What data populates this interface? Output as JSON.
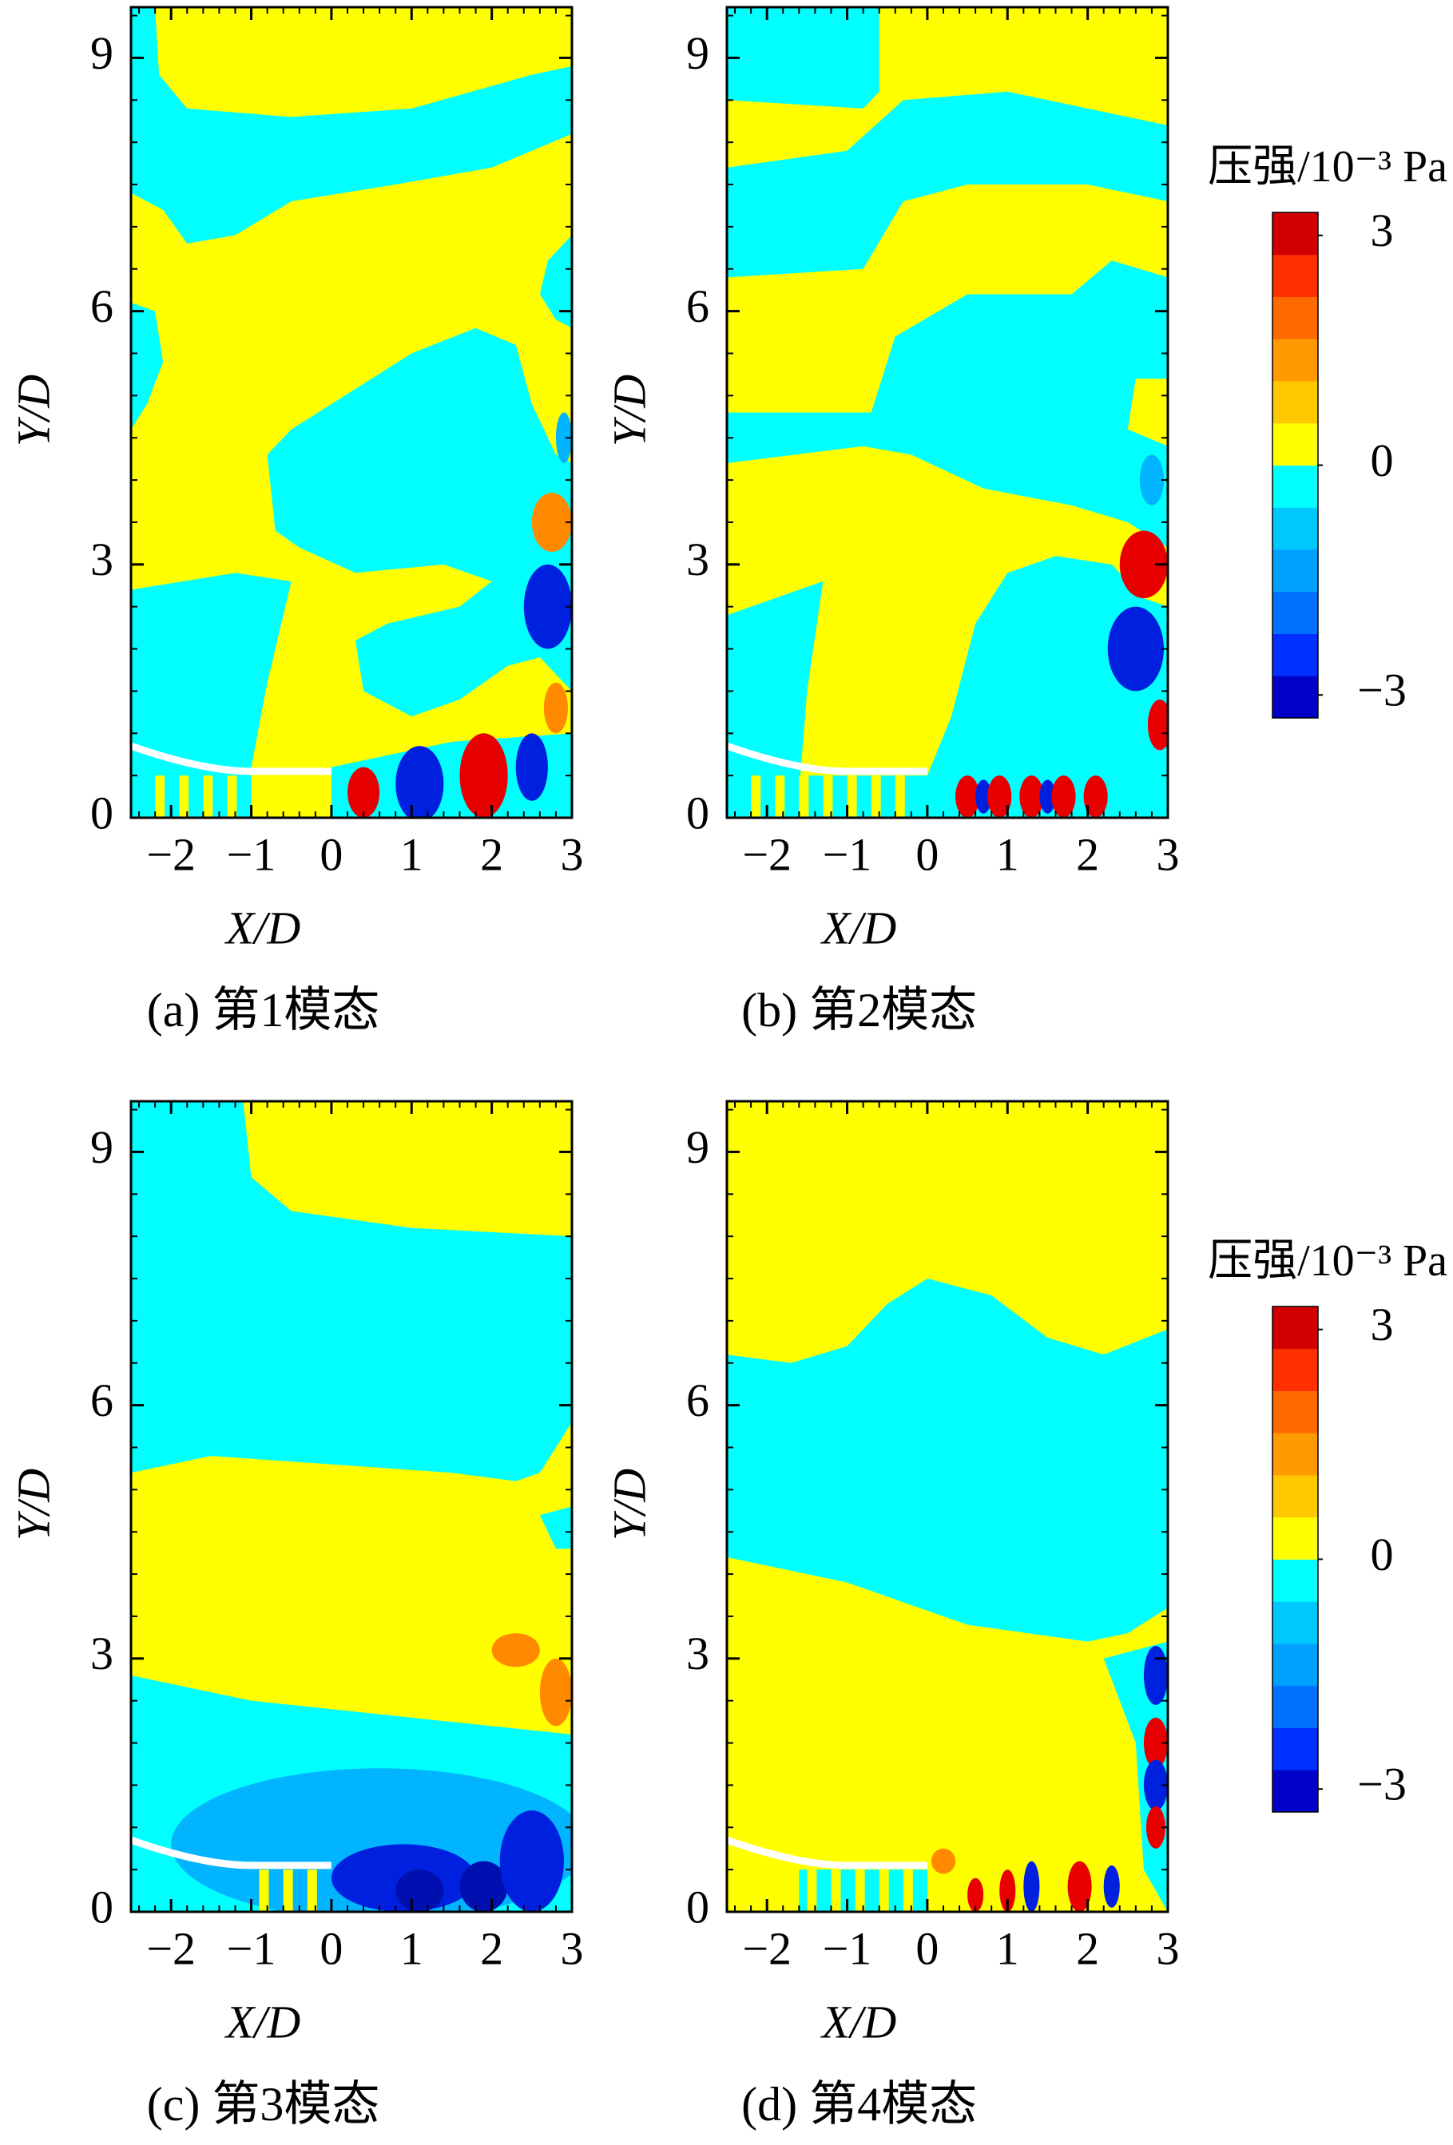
{
  "chart_data": [
    {
      "type": "contour",
      "title": "(a) 第1模态",
      "x_label": "X/D",
      "y_label": "Y/D",
      "xlim": [
        -2.5,
        3
      ],
      "ylim": [
        0,
        9.6
      ],
      "xticks": [
        {
          "value": -2,
          "label": "−2"
        },
        {
          "value": -1,
          "label": "−1"
        },
        0,
        1,
        2,
        3
      ],
      "yticks": [
        0,
        3,
        6,
        9
      ]
    },
    {
      "type": "contour",
      "title": "(b) 第2模态",
      "x_label": "X/D",
      "y_label": "Y/D",
      "xlim": [
        -2.5,
        3
      ],
      "ylim": [
        0,
        9.6
      ],
      "xticks": [
        {
          "value": -2,
          "label": "−2"
        },
        {
          "value": -1,
          "label": "−1"
        },
        0,
        1,
        2,
        3
      ],
      "yticks": [
        0,
        3,
        6,
        9
      ],
      "colorbar": {
        "title": "压强/10⁻³ Pa",
        "lim": [
          -3.3,
          3.3
        ],
        "ticks": [
          {
            "value": -3,
            "label": "−3"
          },
          0,
          3
        ],
        "colors": [
          "#0000c8",
          "#0030ff",
          "#0070ff",
          "#00a0ff",
          "#00c8ff",
          "#00ffff",
          "#ffff00",
          "#ffc800",
          "#ff9a00",
          "#ff6a00",
          "#ff3000",
          "#d00000"
        ]
      }
    },
    {
      "type": "contour",
      "title": "(c) 第3模态",
      "x_label": "X/D",
      "y_label": "Y/D",
      "xlim": [
        -2.5,
        3
      ],
      "ylim": [
        0,
        9.6
      ],
      "xticks": [
        {
          "value": -2,
          "label": "−2"
        },
        {
          "value": -1,
          "label": "−1"
        },
        0,
        1,
        2,
        3
      ],
      "yticks": [
        0,
        3,
        6,
        9
      ]
    },
    {
      "type": "contour",
      "title": "(d) 第4模态",
      "x_label": "X/D",
      "y_label": "Y/D",
      "xlim": [
        -2.5,
        3
      ],
      "ylim": [
        0,
        9.6
      ],
      "xticks": [
        {
          "value": -2,
          "label": "−2"
        },
        {
          "value": -1,
          "label": "−1"
        },
        0,
        1,
        2,
        3
      ],
      "yticks": [
        0,
        3,
        6,
        9
      ],
      "colorbar": {
        "title": "压强/10⁻³ Pa",
        "lim": [
          -3.3,
          3.3
        ],
        "ticks": [
          {
            "value": -3,
            "label": "−3"
          },
          0,
          3
        ],
        "colors": [
          "#0000c8",
          "#0030ff",
          "#0070ff",
          "#00a0ff",
          "#00c8ff",
          "#00ffff",
          "#ffff00",
          "#ffc800",
          "#ff9a00",
          "#ff6a00",
          "#ff3000",
          "#d00000"
        ]
      }
    }
  ]
}
